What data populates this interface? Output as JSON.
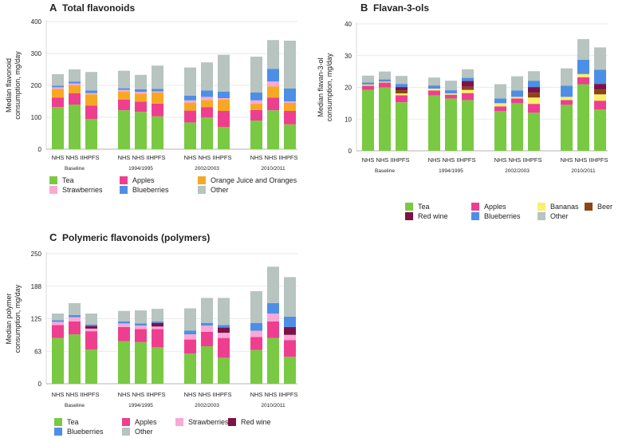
{
  "chart_data": [
    {
      "id": "A",
      "type": "bar",
      "stacked": true,
      "panel_letter": "A",
      "title": "Total flavonoids",
      "ylabel": [
        "Median flavonoid",
        "consumption, mg/day"
      ],
      "ylim": [
        0,
        400
      ],
      "yticks": [
        "0",
        "100",
        "200",
        "300",
        "400"
      ],
      "grid": true,
      "groups": [
        "Baseline",
        "1994/1995",
        "2002/2003",
        "2010/2011"
      ],
      "cohorts": [
        "NHS",
        "NHS II",
        "HPFS"
      ],
      "series": [
        {
          "name": "Tea",
          "color": "#7ac943",
          "values": [
            [
              132,
              140,
              95
            ],
            [
              122,
              117,
              103
            ],
            [
              84,
              100,
              70
            ],
            [
              90,
              122,
              78
            ]
          ]
        },
        {
          "name": "Apples",
          "color": "#ee3f8f",
          "values": [
            [
              30,
              35,
              42
            ],
            [
              33,
              32,
              40
            ],
            [
              37,
              32,
              50
            ],
            [
              33,
              40,
              42
            ]
          ]
        },
        {
          "name": "Orange Juice and Oranges",
          "color": "#f7a823",
          "values": [
            [
              27,
              25,
              35
            ],
            [
              25,
              25,
              35
            ],
            [
              25,
              22,
              35
            ],
            [
              20,
              35,
              25
            ]
          ]
        },
        {
          "name": "Strawberries",
          "color": "#f9a8d8",
          "values": [
            [
              5,
              6,
              4
            ],
            [
              6,
              6,
              3
            ],
            [
              7,
              10,
              5
            ],
            [
              10,
              15,
              5
            ]
          ]
        },
        {
          "name": "Blueberries",
          "color": "#4d8fe6",
          "values": [
            [
              5,
              6,
              8
            ],
            [
              5,
              8,
              8
            ],
            [
              15,
              20,
              20
            ],
            [
              25,
              40,
              40
            ]
          ]
        },
        {
          "name": "Other",
          "color": "#b7c4c0",
          "values": [
            [
              36,
              38,
              58
            ],
            [
              55,
              45,
              73
            ],
            [
              88,
              88,
              116
            ],
            [
              112,
              90,
              150
            ]
          ]
        }
      ]
    },
    {
      "id": "B",
      "type": "bar",
      "stacked": true,
      "panel_letter": "B",
      "title": "Flavan-3-ols",
      "ylabel": [
        "Median flavan-3-ol",
        "consumption, mg/day"
      ],
      "ylim": [
        0,
        40
      ],
      "yticks": [
        "0",
        "10",
        "20",
        "30",
        "40"
      ],
      "grid": true,
      "groups": [
        "Baseline",
        "1994/1995",
        "2002/2003",
        "2010/2011"
      ],
      "cohorts": [
        "NHS",
        "NHS II",
        "HPFS"
      ],
      "series": [
        {
          "name": "Tea",
          "color": "#7ac943",
          "values": [
            [
              19.2,
              20,
              15.3
            ],
            [
              17.5,
              16.5,
              16
            ],
            [
              12.5,
              15,
              12
            ],
            [
              14.5,
              21,
              13
            ]
          ]
        },
        {
          "name": "Apples",
          "color": "#ee3f8f",
          "values": [
            [
              1.3,
              1.5,
              2.2
            ],
            [
              1.5,
              1.2,
              2.2
            ],
            [
              1.5,
              1.5,
              2.8
            ],
            [
              1.5,
              2.2,
              2.8
            ]
          ]
        },
        {
          "name": "Bananas",
          "color": "#f9f06b",
          "values": [
            [
              0.4,
              0.3,
              0.6
            ],
            [
              0.6,
              0.4,
              1
            ],
            [
              1,
              0.5,
              2
            ],
            [
              1,
              1,
              2
            ]
          ]
        },
        {
          "name": "Beer",
          "color": "#8b4513",
          "values": [
            [
              0,
              0,
              1
            ],
            [
              0,
              0,
              1
            ],
            [
              0,
              0,
              1.5
            ],
            [
              0,
              0,
              1.5
            ]
          ]
        },
        {
          "name": "Red wine",
          "color": "#7d1247",
          "values": [
            [
              0,
              0,
              1
            ],
            [
              0,
              0,
              1.8
            ],
            [
              0,
              0,
              1.8
            ],
            [
              0,
              0,
              1.8
            ]
          ]
        },
        {
          "name": "Blueberries",
          "color": "#4d8fe6",
          "values": [
            [
              0.6,
              0.7,
              1
            ],
            [
              1,
              1,
              1
            ],
            [
              1.5,
              2,
              2
            ],
            [
              3.5,
              4.5,
              4.5
            ]
          ]
        },
        {
          "name": "Other",
          "color": "#b7c4c0",
          "values": [
            [
              2.2,
              2.5,
              2.5
            ],
            [
              2.5,
              3,
              2.7
            ],
            [
              4.5,
              4.5,
              3
            ],
            [
              5.5,
              6.5,
              7
            ]
          ]
        }
      ]
    },
    {
      "id": "C",
      "type": "bar",
      "stacked": true,
      "panel_letter": "C",
      "title": "Polymeric flavonoids (polymers)",
      "ylabel": [
        "Median polymer",
        "consumption, mg/day"
      ],
      "ylim": [
        0,
        250
      ],
      "yticks": [
        "0",
        "63",
        "125",
        "188",
        "250"
      ],
      "grid": true,
      "groups": [
        "Baseline",
        "1994/1995",
        "2002/2003",
        "2010/2011"
      ],
      "cohorts": [
        "NHS",
        "NHS II",
        "HPFS"
      ],
      "series": [
        {
          "name": "Tea",
          "color": "#7ac943",
          "values": [
            [
              88,
              95,
              66
            ],
            [
              82,
              80,
              70
            ],
            [
              58,
              72,
              50
            ],
            [
              65,
              88,
              52
            ]
          ]
        },
        {
          "name": "Apples",
          "color": "#ee3f8f",
          "values": [
            [
              25,
              25,
              35
            ],
            [
              27,
              25,
              35
            ],
            [
              27,
              28,
              38
            ],
            [
              25,
              32,
              32
            ]
          ]
        },
        {
          "name": "Strawberries",
          "color": "#f9a8d8",
          "values": [
            [
              6,
              8,
              5
            ],
            [
              7,
              7,
              5
            ],
            [
              10,
              12,
              10
            ],
            [
              12,
              15,
              10
            ]
          ]
        },
        {
          "name": "Red wine",
          "color": "#7d1247",
          "values": [
            [
              0,
              0,
              5
            ],
            [
              0,
              0,
              7
            ],
            [
              0,
              0,
              10
            ],
            [
              0,
              0,
              15
            ]
          ]
        },
        {
          "name": "Blueberries",
          "color": "#4d8fe6",
          "values": [
            [
              3,
              4,
              3
            ],
            [
              4,
              4,
              3
            ],
            [
              7,
              5,
              5
            ],
            [
              15,
              20,
              20
            ]
          ]
        },
        {
          "name": "Other",
          "color": "#b7c4c0",
          "values": [
            [
              13,
              23,
              21
            ],
            [
              20,
              25,
              24
            ],
            [
              43,
              48,
              52
            ],
            [
              61,
              70,
              76
            ]
          ]
        }
      ]
    }
  ]
}
